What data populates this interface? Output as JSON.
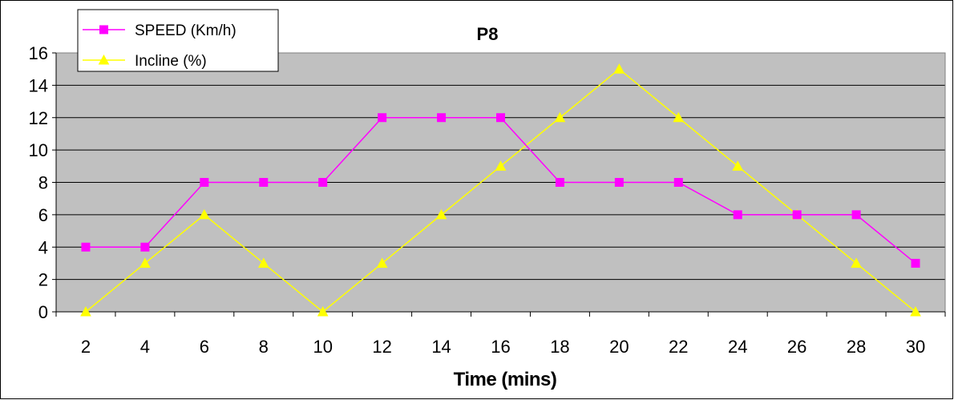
{
  "chart_data": {
    "type": "line",
    "title": "P8",
    "xlabel": "Time (mins)",
    "ylabel": "",
    "x": [
      2,
      4,
      6,
      8,
      10,
      12,
      14,
      16,
      18,
      20,
      22,
      24,
      26,
      28,
      30
    ],
    "ylim": [
      0,
      16
    ],
    "yticks": [
      0,
      2,
      4,
      6,
      8,
      10,
      12,
      14,
      16
    ],
    "grid": true,
    "legend_position": "top-left",
    "plot_background": "#c0c0c0",
    "series": [
      {
        "name": "SPEED (Km/h)",
        "color": "#ff00ff",
        "marker": "square",
        "values": [
          4,
          4,
          8,
          8,
          8,
          12,
          12,
          12,
          8,
          8,
          8,
          6,
          6,
          6,
          3
        ]
      },
      {
        "name": "Incline (%)",
        "color": "#ffff00",
        "marker": "triangle",
        "values": [
          0,
          3,
          6,
          3,
          0,
          3,
          6,
          9,
          12,
          15,
          12,
          9,
          6,
          3,
          0
        ]
      }
    ]
  }
}
